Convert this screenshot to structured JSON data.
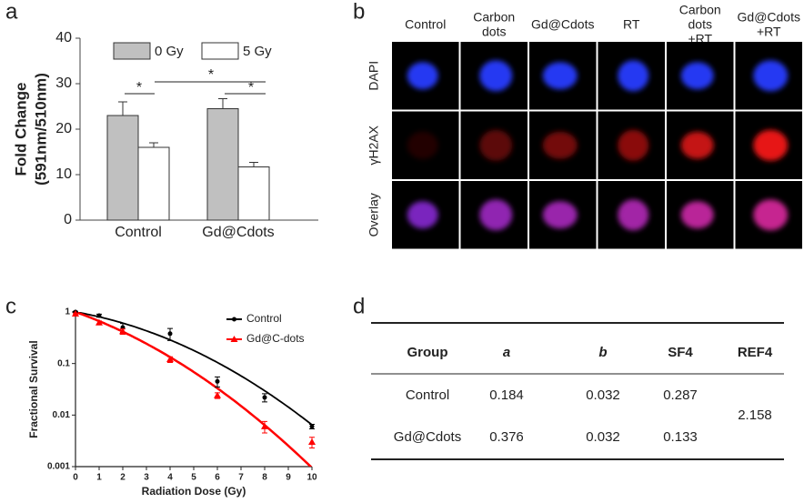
{
  "panel_labels": [
    "a",
    "b",
    "c",
    "d"
  ],
  "chart_data": [
    {
      "type": "bar",
      "ylabel": [
        "Fold Change",
        "(591nm/510nm)"
      ],
      "categories": [
        "Control",
        "Gd@Cdots"
      ],
      "series": [
        {
          "name": "0 Gy",
          "color": "#c0c0c0",
          "values": [
            23,
            24.5
          ],
          "errors": [
            3,
            2.2
          ]
        },
        {
          "name": "5 Gy",
          "color": "#ffffff",
          "values": [
            16,
            11.7
          ],
          "errors": [
            1,
            1
          ]
        }
      ],
      "ylim": [
        0,
        40
      ],
      "yticks": [
        0,
        10,
        20,
        30,
        40
      ],
      "annotations": [
        "*",
        "*",
        "*"
      ]
    },
    {
      "type": "scatter",
      "xlabel": "Radiation Dose (Gy)",
      "ylabel": "Fractional Survival",
      "log_y": true,
      "x": [
        0,
        1,
        2,
        4,
        6,
        8,
        10
      ],
      "series": [
        {
          "name": "Control",
          "color": "#000000",
          "marker": "circle",
          "values": [
            1,
            0.85,
            0.5,
            0.38,
            0.045,
            0.022,
            0.006
          ],
          "errors": [
            0.03,
            0.06,
            0.1,
            0.1,
            0.01,
            0.004,
            0.0006
          ]
        },
        {
          "name": "Gd@C-dots",
          "color": "#ff0000",
          "marker": "triangle",
          "values": [
            0.92,
            0.62,
            0.42,
            0.12,
            0.024,
            0.006,
            0.003
          ],
          "errors": [
            0.03,
            0.05,
            0.05,
            0.015,
            0.003,
            0.0015,
            0.0007
          ]
        }
      ],
      "xlim": [
        0,
        10
      ],
      "ylim": [
        0.001,
        1
      ],
      "xticks": [
        0,
        1,
        2,
        3,
        4,
        5,
        6,
        7,
        8,
        9,
        10
      ],
      "yticks": [
        0.001,
        0.01,
        0.1,
        1
      ],
      "legend": "upper right"
    }
  ],
  "image_grid": {
    "columns": [
      [
        "Control"
      ],
      [
        "Carbon",
        "dots"
      ],
      [
        "Gd@Cdots"
      ],
      [
        "RT"
      ],
      [
        "Carbon",
        "dots",
        "+RT"
      ],
      [
        "Gd@Cdots",
        "+RT"
      ]
    ],
    "rows": [
      "DAPI",
      "γH2AX",
      "Overlay"
    ]
  },
  "table": {
    "header": [
      "Group",
      "a",
      "b",
      "SF4",
      "REF4"
    ],
    "rows": [
      [
        "Control",
        0.184,
        0.032,
        0.287
      ],
      [
        "Gd@Cdots",
        0.376,
        0.032,
        0.133
      ]
    ],
    "REF4": 2.158
  }
}
